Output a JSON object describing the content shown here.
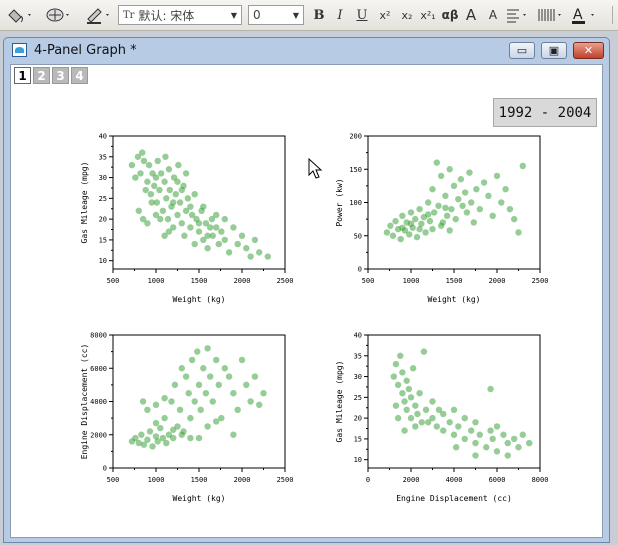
{
  "toolbar": {
    "font_name": "默认: 宋体",
    "font_size": "0",
    "bold": "B",
    "italic": "I",
    "underline": "U",
    "superscript": "x²",
    "subscript": "x₂",
    "supsub": "x²₁",
    "greek": "αβ",
    "grow": "A",
    "shrink": "A",
    "icons": [
      "fill-bucket-icon",
      "pattern-icon",
      "pen-icon",
      "align-icon",
      "hatch-icon",
      "font-color-icon"
    ]
  },
  "window": {
    "title": "4-Panel Graph *",
    "minimize": "▭",
    "restore": "▣",
    "close": "✕"
  },
  "layer_tabs": [
    "1",
    "2",
    "3",
    "4"
  ],
  "year_label": "1992 - 2004",
  "colors": {
    "marker": "#2e9a2e",
    "accent_titlebar": "#b7cbe4"
  },
  "chart_data": [
    {
      "type": "scatter",
      "title": "",
      "xlabel": "Weight (kg)",
      "ylabel": "Gas Mileage (mpg)",
      "xlim": [
        500,
        2500
      ],
      "ylim": [
        8,
        40
      ],
      "xticks": [
        500,
        1000,
        1500,
        2000,
        2500
      ],
      "yticks": [
        10,
        15,
        20,
        25,
        30,
        35,
        40
      ],
      "points": [
        [
          720,
          33
        ],
        [
          760,
          30
        ],
        [
          790,
          35
        ],
        [
          820,
          31
        ],
        [
          840,
          36
        ],
        [
          860,
          34
        ],
        [
          880,
          27
        ],
        [
          900,
          29
        ],
        [
          920,
          33
        ],
        [
          940,
          26
        ],
        [
          960,
          31
        ],
        [
          980,
          28
        ],
        [
          1000,
          30
        ],
        [
          1010,
          24
        ],
        [
          1020,
          34
        ],
        [
          1040,
          27
        ],
        [
          1060,
          31
        ],
        [
          1080,
          22
        ],
        [
          1100,
          29
        ],
        [
          1110,
          35
        ],
        [
          1120,
          25
        ],
        [
          1140,
          20
        ],
        [
          1150,
          32
        ],
        [
          1160,
          27
        ],
        [
          1180,
          23
        ],
        [
          1200,
          18
        ],
        [
          1210,
          30
        ],
        [
          1230,
          26
        ],
        [
          1250,
          21
        ],
        [
          1260,
          33
        ],
        [
          1280,
          24
        ],
        [
          1300,
          19
        ],
        [
          1320,
          28
        ],
        [
          1330,
          16
        ],
        [
          1350,
          22
        ],
        [
          1370,
          25
        ],
        [
          1400,
          18
        ],
        [
          1420,
          21
        ],
        [
          1450,
          14
        ],
        [
          1470,
          20
        ],
        [
          1500,
          17
        ],
        [
          1530,
          22
        ],
        [
          1550,
          15
        ],
        [
          1580,
          19
        ],
        [
          1600,
          13
        ],
        [
          1630,
          18
        ],
        [
          1660,
          16
        ],
        [
          1700,
          21
        ],
        [
          1730,
          14
        ],
        [
          1760,
          17
        ],
        [
          1800,
          15
        ],
        [
          1850,
          12
        ],
        [
          1900,
          18
        ],
        [
          1950,
          14
        ],
        [
          2000,
          16
        ],
        [
          2050,
          13
        ],
        [
          2100,
          11
        ],
        [
          2150,
          15
        ],
        [
          2200,
          12
        ],
        [
          2300,
          11
        ],
        [
          800,
          22
        ],
        [
          850,
          20
        ],
        [
          950,
          24
        ],
        [
          1050,
          20
        ],
        [
          1150,
          17
        ],
        [
          1250,
          29
        ],
        [
          1350,
          31
        ],
        [
          1450,
          26
        ],
        [
          1550,
          23
        ],
        [
          1650,
          20
        ],
        [
          900,
          19
        ],
        [
          1000,
          21
        ],
        [
          1100,
          16
        ],
        [
          1200,
          24
        ],
        [
          1300,
          27
        ],
        [
          1400,
          23
        ],
        [
          1500,
          19
        ],
        [
          1600,
          16
        ],
        [
          1700,
          18
        ],
        [
          1800,
          20
        ]
      ]
    },
    {
      "type": "scatter",
      "title": "",
      "xlabel": "Weight (kg)",
      "ylabel": "Power (kw)",
      "xlim": [
        500,
        2500
      ],
      "ylim": [
        0,
        200
      ],
      "xticks": [
        500,
        1000,
        1500,
        2000,
        2500
      ],
      "yticks": [
        0,
        50,
        100,
        150,
        200
      ],
      "points": [
        [
          720,
          55
        ],
        [
          760,
          65
        ],
        [
          790,
          50
        ],
        [
          820,
          72
        ],
        [
          850,
          60
        ],
        [
          880,
          45
        ],
        [
          900,
          80
        ],
        [
          930,
          58
        ],
        [
          950,
          70
        ],
        [
          980,
          52
        ],
        [
          1000,
          85
        ],
        [
          1020,
          62
        ],
        [
          1050,
          75
        ],
        [
          1070,
          48
        ],
        [
          1100,
          90
        ],
        [
          1120,
          68
        ],
        [
          1150,
          78
        ],
        [
          1170,
          55
        ],
        [
          1200,
          100
        ],
        [
          1220,
          72
        ],
        [
          1250,
          120
        ],
        [
          1270,
          85
        ],
        [
          1300,
          160
        ],
        [
          1320,
          95
        ],
        [
          1350,
          140
        ],
        [
          1370,
          70
        ],
        [
          1400,
          110
        ],
        [
          1420,
          80
        ],
        [
          1450,
          150
        ],
        [
          1470,
          90
        ],
        [
          1500,
          125
        ],
        [
          1520,
          75
        ],
        [
          1550,
          105
        ],
        [
          1580,
          135
        ],
        [
          1600,
          95
        ],
        [
          1630,
          115
        ],
        [
          1650,
          85
        ],
        [
          1680,
          145
        ],
        [
          1700,
          100
        ],
        [
          1730,
          70
        ],
        [
          1760,
          120
        ],
        [
          1800,
          90
        ],
        [
          1850,
          130
        ],
        [
          1900,
          110
        ],
        [
          1950,
          80
        ],
        [
          2000,
          140
        ],
        [
          2050,
          100
        ],
        [
          2100,
          120
        ],
        [
          2150,
          90
        ],
        [
          2200,
          75
        ],
        [
          2250,
          55
        ],
        [
          2300,
          155
        ],
        [
          1250,
          60
        ],
        [
          1350,
          65
        ],
        [
          1450,
          58
        ],
        [
          1100,
          60
        ],
        [
          1000,
          68
        ],
        [
          900,
          62
        ],
        [
          1200,
          82
        ],
        [
          1400,
          92
        ]
      ]
    },
    {
      "type": "scatter",
      "title": "",
      "xlabel": "Weight (kg)",
      "ylabel": "Engine Displacement (cc)",
      "xlim": [
        500,
        2500
      ],
      "ylim": [
        0,
        8000
      ],
      "xticks": [
        500,
        1000,
        1500,
        2000,
        2500
      ],
      "yticks": [
        0,
        2000,
        4000,
        6000,
        8000
      ],
      "points": [
        [
          720,
          1600
        ],
        [
          760,
          1800
        ],
        [
          800,
          1500
        ],
        [
          830,
          2000
        ],
        [
          860,
          1400
        ],
        [
          900,
          1700
        ],
        [
          930,
          2200
        ],
        [
          960,
          1300
        ],
        [
          1000,
          1900
        ],
        [
          1020,
          1600
        ],
        [
          1050,
          2400
        ],
        [
          1080,
          1800
        ],
        [
          1100,
          3000
        ],
        [
          1120,
          1500
        ],
        [
          1150,
          2000
        ],
        [
          1180,
          4000
        ],
        [
          1200,
          1800
        ],
        [
          1220,
          5000
        ],
        [
          1250,
          2500
        ],
        [
          1280,
          3500
        ],
        [
          1300,
          6000
        ],
        [
          1320,
          2200
        ],
        [
          1350,
          5500
        ],
        [
          1380,
          4500
        ],
        [
          1400,
          3000
        ],
        [
          1420,
          6500
        ],
        [
          1450,
          4000
        ],
        [
          1480,
          7000
        ],
        [
          1500,
          5000
        ],
        [
          1520,
          3500
        ],
        [
          1550,
          6000
        ],
        [
          1580,
          4500
        ],
        [
          1600,
          7200
        ],
        [
          1630,
          5500
        ],
        [
          1660,
          4000
        ],
        [
          1700,
          6500
        ],
        [
          1730,
          5000
        ],
        [
          1760,
          3000
        ],
        [
          1800,
          6000
        ],
        [
          1850,
          5500
        ],
        [
          1900,
          4500
        ],
        [
          1950,
          3500
        ],
        [
          2000,
          6500
        ],
        [
          2050,
          5000
        ],
        [
          2100,
          4000
        ],
        [
          2150,
          5500
        ],
        [
          2200,
          3800
        ],
        [
          2250,
          4500
        ],
        [
          1000,
          3800
        ],
        [
          900,
          3500
        ],
        [
          1100,
          4200
        ],
        [
          1300,
          2000
        ],
        [
          1400,
          1800
        ],
        [
          1200,
          2300
        ],
        [
          850,
          4000
        ],
        [
          1600,
          2500
        ],
        [
          1700,
          2800
        ],
        [
          1900,
          2000
        ],
        [
          1500,
          1800
        ],
        [
          1000,
          2700
        ]
      ]
    },
    {
      "type": "scatter",
      "title": "",
      "xlabel": "Engine Displacement (cc)",
      "ylabel": "Gas Mileage (mpg)",
      "xlim": [
        0,
        8000
      ],
      "ylim": [
        8,
        40
      ],
      "xticks": [
        0,
        2000,
        4000,
        6000,
        8000
      ],
      "yticks": [
        10,
        15,
        20,
        25,
        30,
        35,
        40
      ],
      "points": [
        [
          1200,
          30
        ],
        [
          1300,
          33
        ],
        [
          1400,
          28
        ],
        [
          1500,
          35
        ],
        [
          1600,
          26
        ],
        [
          1600,
          31
        ],
        [
          1700,
          24
        ],
        [
          1800,
          29
        ],
        [
          1800,
          22
        ],
        [
          1900,
          27
        ],
        [
          2000,
          20
        ],
        [
          2000,
          25
        ],
        [
          2100,
          32
        ],
        [
          2200,
          23
        ],
        [
          2300,
          21
        ],
        [
          2400,
          26
        ],
        [
          2500,
          19
        ],
        [
          2600,
          36
        ],
        [
          2700,
          22
        ],
        [
          3000,
          20
        ],
        [
          3000,
          24
        ],
        [
          3200,
          18
        ],
        [
          3500,
          21
        ],
        [
          3500,
          17
        ],
        [
          3800,
          19
        ],
        [
          4000,
          22
        ],
        [
          4000,
          16
        ],
        [
          4200,
          18
        ],
        [
          4500,
          20
        ],
        [
          4500,
          15
        ],
        [
          4800,
          17
        ],
        [
          5000,
          14
        ],
        [
          5000,
          19
        ],
        [
          5200,
          16
        ],
        [
          5500,
          13
        ],
        [
          5700,
          27
        ],
        [
          5700,
          17
        ],
        [
          5800,
          15
        ],
        [
          6000,
          12
        ],
        [
          6300,
          16
        ],
        [
          6500,
          14
        ],
        [
          6500,
          11
        ],
        [
          6800,
          15
        ],
        [
          7000,
          13
        ],
        [
          7200,
          16
        ],
        [
          7500,
          14
        ],
        [
          1400,
          20
        ],
        [
          1700,
          17
        ],
        [
          2200,
          18
        ],
        [
          1300,
          23
        ],
        [
          2800,
          19
        ],
        [
          3300,
          22
        ],
        [
          4100,
          13
        ],
        [
          5000,
          11
        ],
        [
          6000,
          18
        ]
      ]
    }
  ]
}
